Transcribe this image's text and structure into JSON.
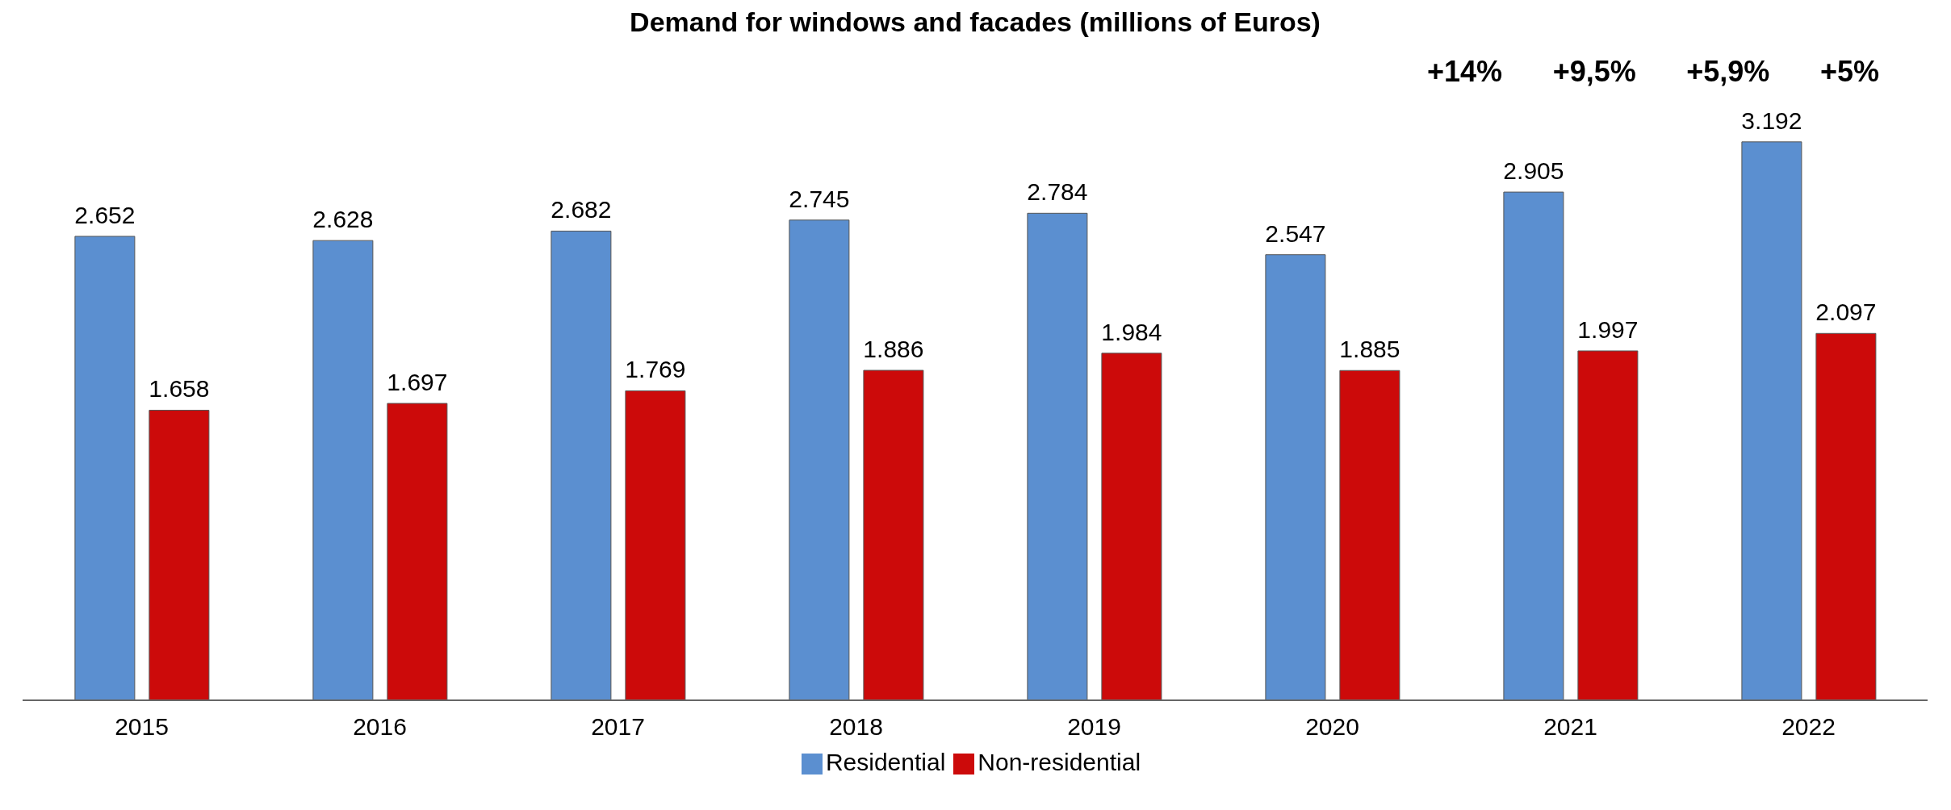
{
  "chart_data": {
    "type": "bar",
    "title": "Demand for windows and facades (millions of Euros)",
    "categories": [
      "2015",
      "2016",
      "2017",
      "2018",
      "2019",
      "2020",
      "2021",
      "2022"
    ],
    "series": [
      {
        "name": "Residential",
        "color": "#5b8fd0",
        "values": [
          2652,
          2628,
          2682,
          2745,
          2784,
          2547,
          2905,
          3192
        ],
        "value_labels": [
          "2.652",
          "2.628",
          "2.682",
          "2.745",
          "2.784",
          "2.547",
          "2.905",
          "3.192"
        ]
      },
      {
        "name": "Non-residential",
        "color": "#cc0a0a",
        "values": [
          1658,
          1697,
          1769,
          1886,
          1984,
          1885,
          1997,
          2097
        ],
        "value_labels": [
          "1.658",
          "1.697",
          "1.769",
          "1.886",
          "1.984",
          "1.885",
          "1.997",
          "2.097"
        ]
      }
    ],
    "annotations": [
      "+14%",
      "+9,5%",
      "+5,9%",
      "+5%"
    ],
    "legend": "bottom"
  }
}
